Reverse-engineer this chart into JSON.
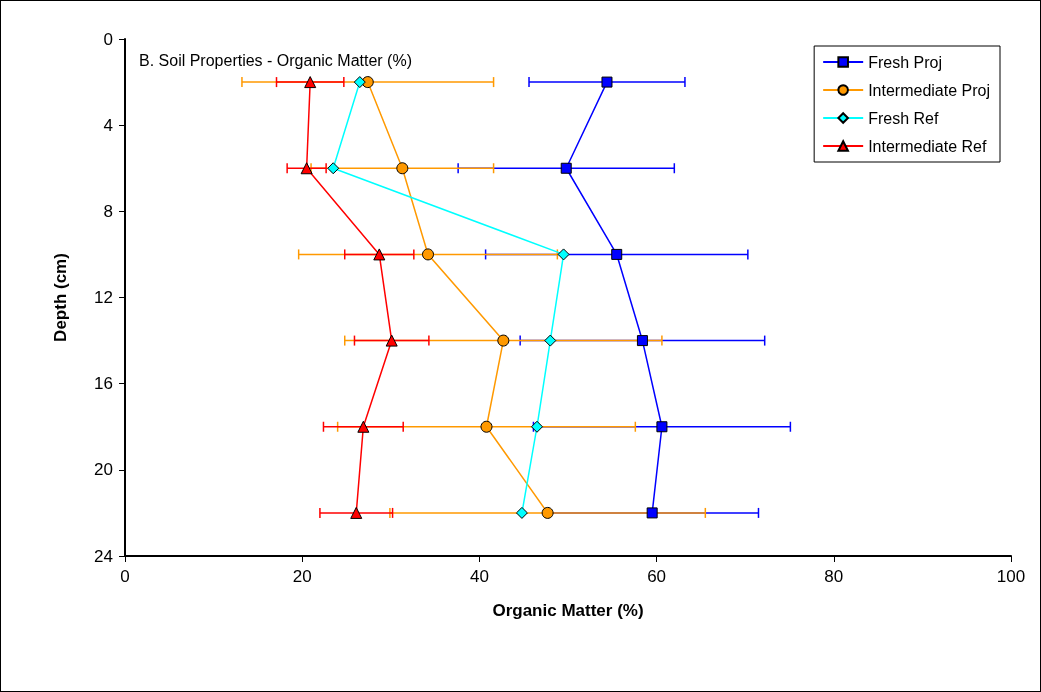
{
  "chart_data": {
    "type": "line",
    "title": "B. Soil Properties - Organic Matter (%)",
    "xlabel": "Organic Matter (%)",
    "ylabel": "Depth (cm)",
    "xlim": [
      0,
      100
    ],
    "xticks": [
      0,
      20,
      40,
      60,
      80,
      100
    ],
    "ylim": [
      24,
      0
    ],
    "yticks": [
      0,
      4,
      8,
      12,
      16,
      20,
      24
    ],
    "grid": false,
    "legend": "top right",
    "line_style": "solid",
    "series": [
      {
        "name": "Fresh Proj",
        "color": "#0000ff",
        "marker": "square",
        "x": [
          54.4,
          49.8,
          55.5,
          58.4,
          60.6,
          59.5
        ],
        "values": [
          2,
          6,
          10,
          14,
          18,
          22
        ],
        "xerrors": [
          8.8,
          12.2,
          14.8,
          13.8,
          14.5,
          12
        ]
      },
      {
        "name": "Intermediate Proj",
        "color": "#ff9900",
        "marker": "circle",
        "x": [
          27.4,
          31.3,
          34.2,
          42.7,
          40.8,
          47.7
        ],
        "values": [
          2,
          6,
          10,
          14,
          18,
          22
        ],
        "xerrors": [
          14.2,
          10.3,
          14.6,
          17.9,
          16.8,
          17.8
        ]
      },
      {
        "name": "Fresh Ref",
        "color": "#00ffff",
        "marker": "diamond",
        "x": [
          26.5,
          23.5,
          49.5,
          48.0,
          46.5,
          44.8
        ],
        "values": [
          2,
          6,
          10,
          14,
          18,
          22
        ]
      },
      {
        "name": "Intermediate Ref",
        "color": "#ff0000",
        "marker": "triangle",
        "x": [
          20.9,
          20.5,
          28.7,
          30.1,
          26.9,
          26.1
        ],
        "values": [
          2,
          6,
          10,
          14,
          18,
          22
        ],
        "xerrors": [
          3.8,
          2.2,
          3.9,
          4.2,
          4.5,
          4.1
        ]
      }
    ]
  }
}
